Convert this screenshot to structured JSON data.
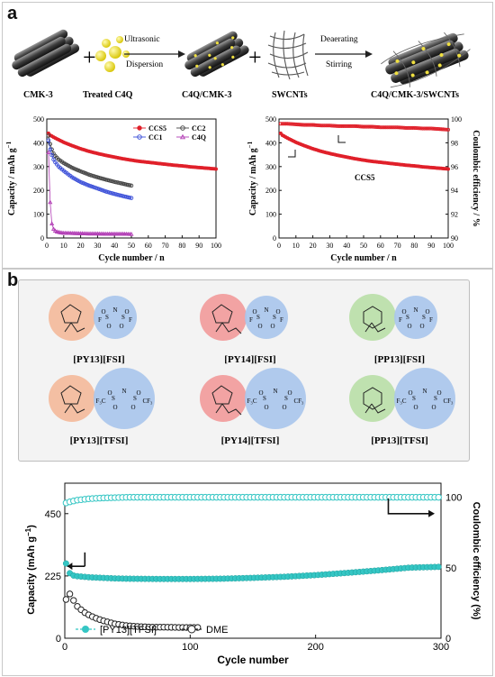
{
  "panel_a_label": "a",
  "panel_b_label": "b",
  "schematic": {
    "items": [
      "CMK-3",
      "Treated C4Q",
      "C4Q/CMK-3",
      "SWCNTs",
      "C4Q/CMK-3/SWCNTs"
    ],
    "arrow1": [
      "Ultrasonic",
      "Dispersion"
    ],
    "arrow2": [
      "Deaerating",
      "Stirring"
    ],
    "plus": "+"
  },
  "ionic_liquids": [
    {
      "name": "[PY13][FSI]",
      "anion": "FSI",
      "cation_color": "#f4b99a"
    },
    {
      "name": "[PY14][FSI]",
      "anion": "FSI",
      "cation_color": "#f29a9a"
    },
    {
      "name": "[PP13][FSI]",
      "anion": "FSI",
      "cation_color": "#b9dfa7"
    },
    {
      "name": "[PY13][TFSI]",
      "anion": "TFSI",
      "cation_color": "#f4b99a"
    },
    {
      "name": "[PY14][TFSI]",
      "anion": "TFSI",
      "cation_color": "#f29a9a"
    },
    {
      "name": "[PP13][TFSI]",
      "anion": "TFSI",
      "cation_color": "#b9dfa7"
    }
  ],
  "anion_color": "#a9c5ec",
  "chart_data": [
    {
      "type": "scatter",
      "xlabel": "Cycle number / n",
      "ylabel": "Capacity / mAh g",
      "ylabel_sup": "−1",
      "xlim": [
        0,
        100
      ],
      "ylim": [
        0,
        500
      ],
      "xticks": [
        "0",
        "10",
        "20",
        "30",
        "40",
        "50",
        "60",
        "70",
        "80",
        "90",
        "100"
      ],
      "yticks": [
        "0",
        "100",
        "200",
        "300",
        "400",
        "500"
      ],
      "legend_placement": "top-right",
      "series": [
        {
          "name": "CCS5",
          "color": "#e0202a",
          "marker": "filled-circle",
          "x": [
            1,
            2,
            5,
            10,
            15,
            20,
            25,
            30,
            35,
            40,
            45,
            50,
            55,
            60,
            65,
            70,
            75,
            80,
            85,
            90,
            95,
            100
          ],
          "y": [
            440,
            432,
            420,
            402,
            388,
            375,
            364,
            355,
            347,
            340,
            333,
            327,
            322,
            318,
            314,
            310,
            306,
            303,
            299,
            296,
            293,
            290
          ]
        },
        {
          "name": "CC2",
          "color": "#444444",
          "marker": "open-circle",
          "x": [
            1,
            2,
            3,
            4,
            5,
            7,
            10,
            15,
            20,
            25,
            30,
            35,
            40,
            45,
            48,
            50
          ],
          "y": [
            430,
            395,
            372,
            355,
            345,
            330,
            315,
            295,
            280,
            266,
            255,
            245,
            236,
            228,
            223,
            220
          ]
        },
        {
          "name": "CC1",
          "color": "#3b4fd8",
          "marker": "open-circle",
          "x": [
            1,
            2,
            3,
            4,
            5,
            7,
            10,
            15,
            20,
            25,
            30,
            35,
            40,
            45,
            48,
            50
          ],
          "y": [
            410,
            372,
            348,
            330,
            318,
            300,
            282,
            255,
            235,
            220,
            208,
            195,
            185,
            176,
            171,
            168
          ]
        },
        {
          "name": "C4Q",
          "color": "#b23db5",
          "marker": "open-triangle",
          "x": [
            1,
            2,
            3,
            4,
            5,
            6,
            8,
            10,
            15,
            20,
            25,
            30,
            35,
            40,
            45,
            50
          ],
          "y": [
            360,
            150,
            60,
            38,
            30,
            26,
            23,
            21,
            20,
            19,
            18,
            18,
            17,
            17,
            17,
            16
          ]
        }
      ]
    },
    {
      "type": "scatter",
      "xlabel": "Cycle number / n",
      "ylabel": "Capacity / mAh g",
      "ylabel_sup": "−1",
      "y2label": "Coulombic efficiency / %",
      "xlim": [
        0,
        100
      ],
      "ylim": [
        0,
        500
      ],
      "y2lim": [
        90,
        100
      ],
      "xticks": [
        "0",
        "10",
        "20",
        "30",
        "40",
        "50",
        "60",
        "70",
        "80",
        "90",
        "100"
      ],
      "yticks": [
        "0",
        "100",
        "200",
        "300",
        "400",
        "500"
      ],
      "y2ticks": [
        "90",
        "92",
        "94",
        "96",
        "98",
        "100"
      ],
      "annotation": "CCS5",
      "series": [
        {
          "name": "CCS5 capacity",
          "axis": "left",
          "color": "#e0202a",
          "marker": "filled-circle",
          "x": [
            1,
            2,
            5,
            10,
            15,
            20,
            25,
            30,
            35,
            40,
            45,
            50,
            55,
            60,
            65,
            70,
            75,
            80,
            85,
            90,
            95,
            100
          ],
          "y": [
            440,
            432,
            420,
            402,
            388,
            375,
            364,
            355,
            347,
            340,
            333,
            327,
            322,
            318,
            314,
            310,
            306,
            303,
            299,
            296,
            293,
            290
          ]
        },
        {
          "name": "CCS5 efficiency",
          "axis": "right",
          "color": "#e0202a",
          "marker": "open-circle",
          "x": [
            1,
            5,
            10,
            15,
            20,
            25,
            30,
            35,
            40,
            45,
            50,
            55,
            60,
            65,
            70,
            75,
            80,
            85,
            90,
            95,
            100
          ],
          "y": [
            99.6,
            99.6,
            99.55,
            99.5,
            99.5,
            99.45,
            99.45,
            99.4,
            99.4,
            99.4,
            99.35,
            99.35,
            99.3,
            99.3,
            99.3,
            99.25,
            99.25,
            99.2,
            99.2,
            99.15,
            99.1
          ]
        }
      ]
    },
    {
      "type": "scatter",
      "xlabel": "Cycle number",
      "ylabel": "Capacity (mAh g",
      "ylabel_sup": "−1",
      "ylabel_end": ")",
      "y2label": "Coulombic efficiency (%)",
      "xlim": [
        0,
        300
      ],
      "ylim": [
        0,
        560
      ],
      "y2lim": [
        0,
        110
      ],
      "xticks": [
        "0",
        "100",
        "200",
        "300"
      ],
      "yticks": [
        "0",
        "225",
        "450"
      ],
      "y2ticks": [
        "0",
        "50",
        "100"
      ],
      "legend_placement": "bottom-left",
      "series": [
        {
          "name": "[PY13][TFSI]",
          "color": "#35c6c4",
          "marker": "filled-circle",
          "x": [
            1,
            2,
            3,
            4,
            5,
            6,
            8,
            10,
            15,
            20,
            30,
            40,
            50,
            75,
            100,
            125,
            150,
            175,
            200,
            225,
            250,
            275,
            300
          ],
          "y": [
            270,
            250,
            240,
            235,
            232,
            228,
            225,
            224,
            222,
            220,
            218,
            216,
            215,
            214,
            214,
            215,
            218,
            222,
            228,
            236,
            245,
            255,
            258
          ]
        },
        {
          "name": "[PY13][TFSI] CE",
          "color": "#35c6c4",
          "marker": "open-circle",
          "x": [
            1,
            5,
            10,
            20,
            30,
            50,
            75,
            100,
            125,
            150,
            175,
            200,
            225,
            250,
            275,
            300
          ],
          "y": [
            96,
            97,
            98,
            99,
            99.5,
            100,
            100,
            100,
            100,
            100,
            100,
            100,
            100,
            100,
            100,
            100
          ]
        },
        {
          "name": "DME",
          "color": "#222222",
          "marker": "open-circle",
          "x": [
            1,
            3,
            5,
            8,
            10,
            15,
            20,
            25,
            30,
            35,
            40,
            50,
            60,
            70,
            80,
            90,
            100,
            108
          ],
          "y": [
            140,
            170,
            150,
            130,
            115,
            95,
            82,
            72,
            64,
            58,
            52,
            45,
            42,
            40,
            40,
            39,
            39,
            39
          ]
        }
      ]
    }
  ]
}
